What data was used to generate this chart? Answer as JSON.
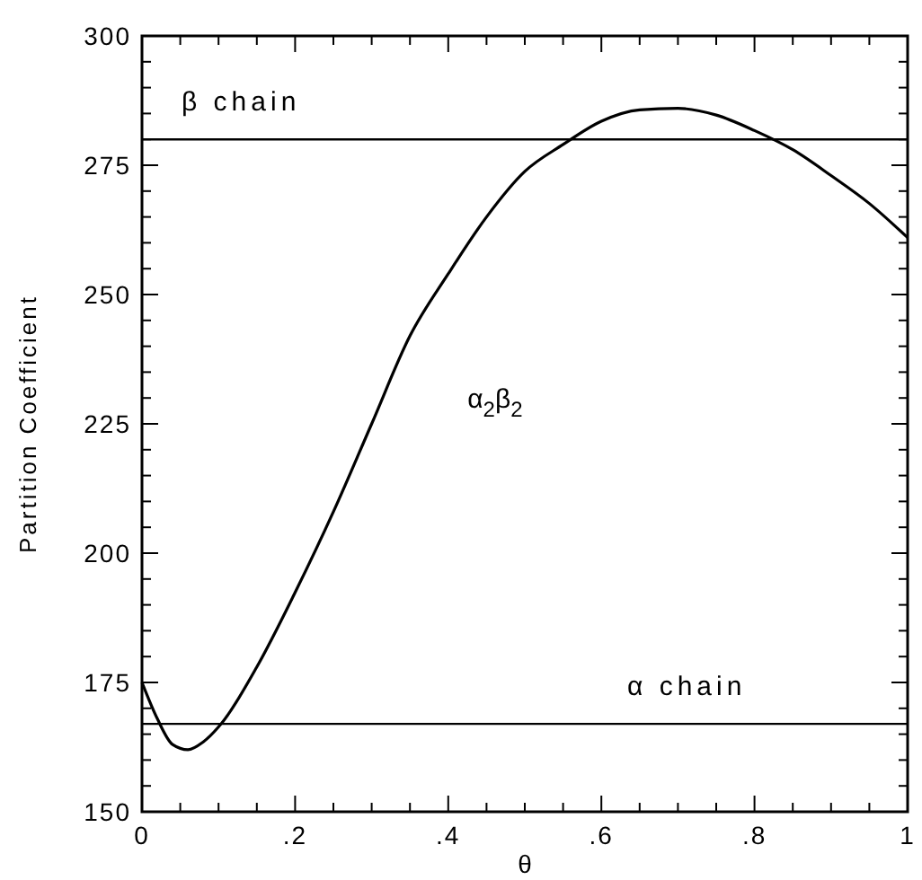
{
  "chart_data": {
    "type": "line",
    "xlabel": "θ",
    "ylabel": "Partition Coefficient",
    "x": [
      0,
      0.02,
      0.04,
      0.06,
      0.08,
      0.1,
      0.15,
      0.2,
      0.25,
      0.3,
      0.35,
      0.4,
      0.45,
      0.5,
      0.55,
      0.6,
      0.65,
      0.7,
      0.75,
      0.8,
      0.85,
      0.9,
      0.95,
      1
    ],
    "series": [
      {
        "name": "α$_{2}$β$_{2}$",
        "color": "#000000",
        "values": [
          175,
          168,
          163,
          162,
          163.5,
          166.4,
          178,
          192.4,
          208,
          225,
          242,
          254,
          265,
          273.8,
          279,
          283.5,
          285.7,
          286,
          284.7,
          281.7,
          278,
          273,
          267.6,
          261
        ]
      }
    ],
    "xlim": [
      0,
      1
    ],
    "ylim": [
      150,
      300
    ],
    "xticks": [
      {
        "value": 0,
        "label": "0"
      },
      {
        "value": 0.05,
        "label": null
      },
      {
        "value": 0.1,
        "label": null
      },
      {
        "value": 0.15,
        "label": null
      },
      {
        "value": 0.2,
        "label": ".2"
      },
      {
        "value": 0.25,
        "label": null
      },
      {
        "value": 0.3,
        "label": null
      },
      {
        "value": 0.35,
        "label": null
      },
      {
        "value": 0.4,
        "label": ".4"
      },
      {
        "value": 0.45,
        "label": null
      },
      {
        "value": 0.5,
        "label": null
      },
      {
        "value": 0.55,
        "label": null
      },
      {
        "value": 0.6,
        "label": ".6"
      },
      {
        "value": 0.65,
        "label": null
      },
      {
        "value": 0.7,
        "label": null
      },
      {
        "value": 0.75,
        "label": null
      },
      {
        "value": 0.8,
        "label": ".8"
      },
      {
        "value": 0.85,
        "label": null
      },
      {
        "value": 0.9,
        "label": null
      },
      {
        "value": 0.95,
        "label": null
      },
      {
        "value": 1,
        "label": "1"
      }
    ],
    "yticks": [
      150,
      {
        "value": 155,
        "label": null
      },
      {
        "value": 160,
        "label": null
      },
      {
        "value": 165,
        "label": null
      },
      {
        "value": 170,
        "label": null
      },
      175,
      {
        "value": 180,
        "label": null
      },
      {
        "value": 185,
        "label": null
      },
      {
        "value": 190,
        "label": null
      },
      {
        "value": 195,
        "label": null
      },
      200,
      {
        "value": 205,
        "label": null
      },
      {
        "value": 210,
        "label": null
      },
      {
        "value": 215,
        "label": null
      },
      {
        "value": 220,
        "label": null
      },
      225,
      {
        "value": 230,
        "label": null
      },
      {
        "value": 235,
        "label": null
      },
      {
        "value": 240,
        "label": null
      },
      {
        "value": 245,
        "label": null
      },
      250,
      {
        "value": 255,
        "label": null
      },
      {
        "value": 260,
        "label": null
      },
      {
        "value": 265,
        "label": null
      },
      {
        "value": 270,
        "label": null
      },
      275,
      {
        "value": 280,
        "label": null
      },
      {
        "value": 285,
        "label": null
      },
      {
        "value": 290,
        "label": null
      },
      {
        "value": 295,
        "label": null
      },
      300
    ],
    "ref_lines": [
      {
        "axis": "y",
        "value": 280,
        "label": "β chain"
      },
      {
        "axis": "y",
        "value": 167,
        "label": "α chain"
      }
    ],
    "grid": false,
    "marker": "none",
    "line_style": "solid"
  }
}
